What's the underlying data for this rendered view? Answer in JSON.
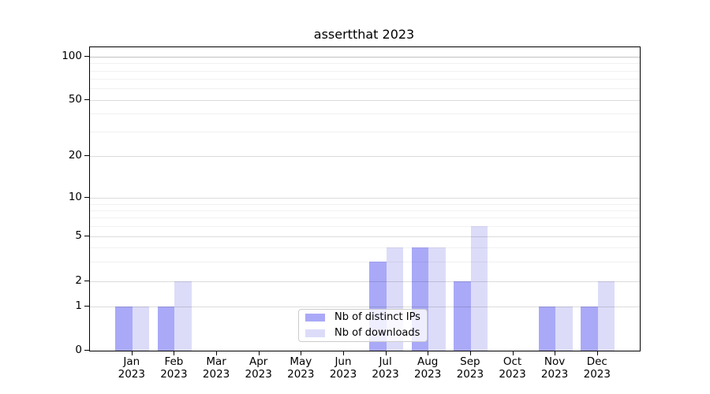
{
  "chart_data": {
    "type": "bar",
    "title": "assertthat 2023",
    "categories": [
      {
        "month": "Jan",
        "year": "2023"
      },
      {
        "month": "Feb",
        "year": "2023"
      },
      {
        "month": "Mar",
        "year": "2023"
      },
      {
        "month": "Apr",
        "year": "2023"
      },
      {
        "month": "May",
        "year": "2023"
      },
      {
        "month": "Jun",
        "year": "2023"
      },
      {
        "month": "Jul",
        "year": "2023"
      },
      {
        "month": "Aug",
        "year": "2023"
      },
      {
        "month": "Sep",
        "year": "2023"
      },
      {
        "month": "Oct",
        "year": "2023"
      },
      {
        "month": "Nov",
        "year": "2023"
      },
      {
        "month": "Dec",
        "year": "2023"
      }
    ],
    "series": [
      {
        "name": "Nb of distinct IPs",
        "color": "#a9a9f8",
        "values": [
          1,
          1,
          0,
          0,
          0,
          0,
          3,
          4,
          2,
          0,
          1,
          1
        ]
      },
      {
        "name": "Nb of downloads",
        "color": "#dcdcf9",
        "values": [
          1,
          2,
          0,
          0,
          0,
          0,
          4,
          4,
          6,
          0,
          1,
          2
        ]
      }
    ],
    "y_axis": {
      "scale": "log-like (1-2-5 major ticks, linear segment between 0 and 1)",
      "major_ticks": [
        100,
        50,
        20,
        10,
        5,
        2,
        1,
        0
      ],
      "minor_gridlines": [
        3,
        4,
        6,
        7,
        8,
        9,
        30,
        40,
        60,
        70,
        80,
        90
      ],
      "ylim": [
        0,
        112
      ]
    },
    "x_axis": {
      "tick_style": "two-line month + year labels, one tick per month"
    },
    "grid": true,
    "legend_position": "lower center inside plot"
  },
  "appearance": {
    "background": "#ffffff",
    "spine_color": "#000000",
    "grid_major_color": "rgba(0,0,0,0.14)",
    "grid_minor_color": "rgba(0,0,0,0.055)",
    "grid_top_color": "rgba(0,0,0,0.24)",
    "legend_border_color": "#cccccc"
  }
}
